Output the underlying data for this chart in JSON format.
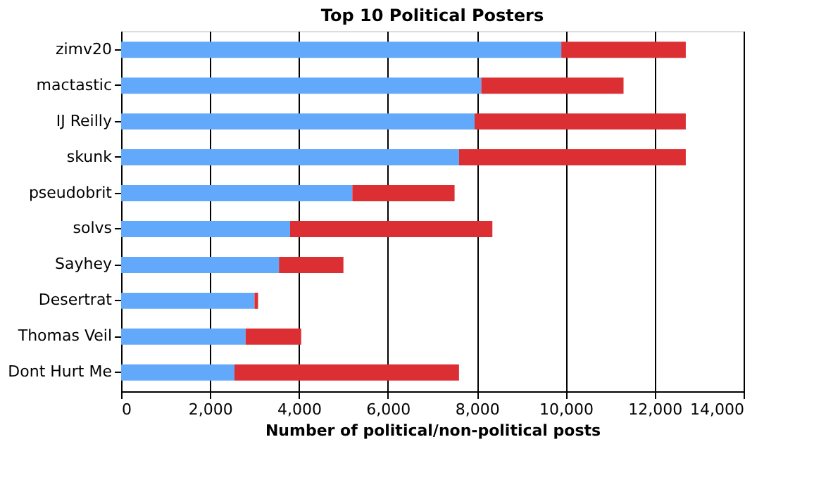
{
  "chart_data": {
    "type": "bar",
    "orientation": "horizontal",
    "stacked": true,
    "title": "Top 10 Political Posters",
    "xlabel": "Number of political/non-political posts",
    "categories": [
      "zimv20",
      "mactastic",
      "IJ Reilly",
      "skunk",
      "pseudobrit",
      "solvs",
      "Sayhey",
      "Desertrat",
      "Thomas Veil",
      "Dont Hurt Me"
    ],
    "series": [
      {
        "color": "#62a8fb",
        "values": [
          9900,
          8100,
          7950,
          7600,
          5200,
          3800,
          3550,
          3000,
          2800,
          2550
        ]
      },
      {
        "color": "#dc2f33",
        "values": [
          2800,
          3200,
          4750,
          5100,
          2300,
          4550,
          1450,
          80,
          1250,
          5050
        ]
      }
    ],
    "xlim": [
      0,
      14000
    ],
    "xticks": [
      0,
      {
        "value": 2000,
        "label": "2,000"
      },
      {
        "value": 4000,
        "label": "4,000"
      },
      {
        "value": 6000,
        "label": "6,000"
      },
      {
        "value": 8000,
        "label": "8,000"
      },
      {
        "value": 10000,
        "label": "10,000"
      },
      {
        "value": 12000,
        "label": "12,000"
      },
      {
        "value": 14000,
        "label": "14,000"
      }
    ],
    "grid": "x",
    "legend": false
  }
}
